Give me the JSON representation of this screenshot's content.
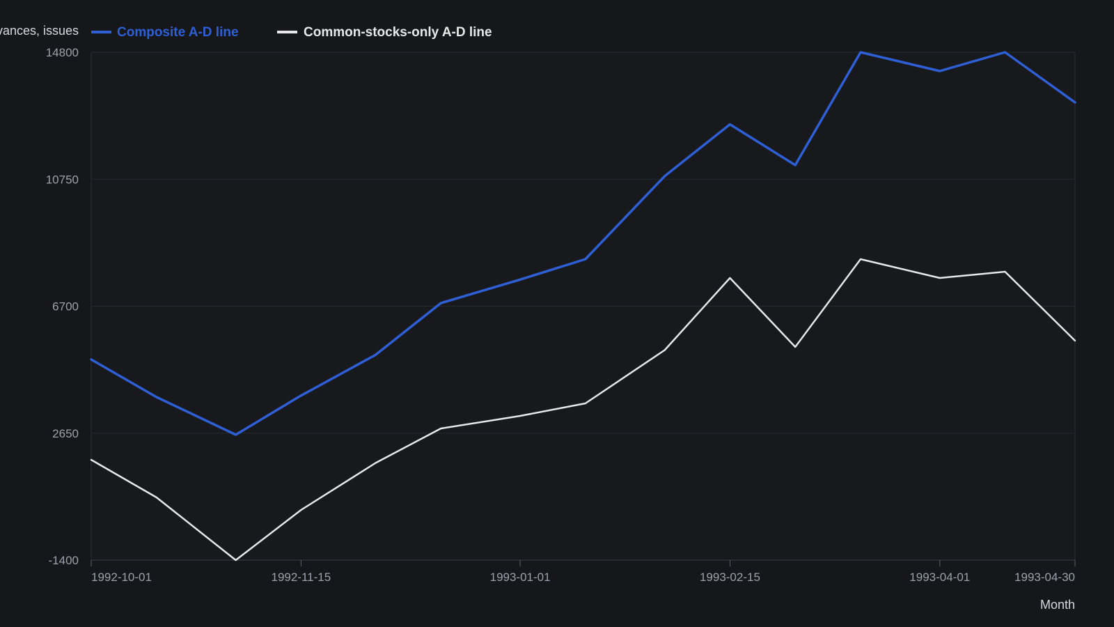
{
  "chart_data": {
    "type": "line",
    "title": "",
    "xlabel": "Month",
    "ylabel": "Cumulative net advances, issues",
    "ylim": [
      -1400,
      14800
    ],
    "yticks": [
      -1400,
      2650,
      6700,
      10750,
      14800
    ],
    "xticks": [
      "1992-10-01",
      "1992-11-15",
      "1993-01-01",
      "1993-02-15",
      "1993-04-01",
      "1993-04-30"
    ],
    "x": [
      "1992-10-01",
      "1992-10-15",
      "1992-11-01",
      "1992-11-15",
      "1992-12-01",
      "1992-12-15",
      "1993-01-01",
      "1993-01-15",
      "1993-02-01",
      "1993-02-15",
      "1993-03-01",
      "1993-03-15",
      "1993-04-01",
      "1993-04-15",
      "1993-04-30"
    ],
    "series": [
      {
        "name": "Composite A-D line",
        "color": "#2f5fd4",
        "values": [
          5000,
          3800,
          2600,
          3850,
          5150,
          6800,
          7550,
          8200,
          10850,
          12500,
          11200,
          14800,
          14200,
          14800,
          13200
        ]
      },
      {
        "name": "Common-stocks-only A-D line",
        "color": "#e8e8e8",
        "values": [
          1800,
          600,
          -1400,
          200,
          1700,
          2800,
          3200,
          3600,
          5300,
          7600,
          5400,
          8200,
          7600,
          7800,
          5600
        ]
      }
    ],
    "grid": true,
    "legend_position": "top-left"
  }
}
